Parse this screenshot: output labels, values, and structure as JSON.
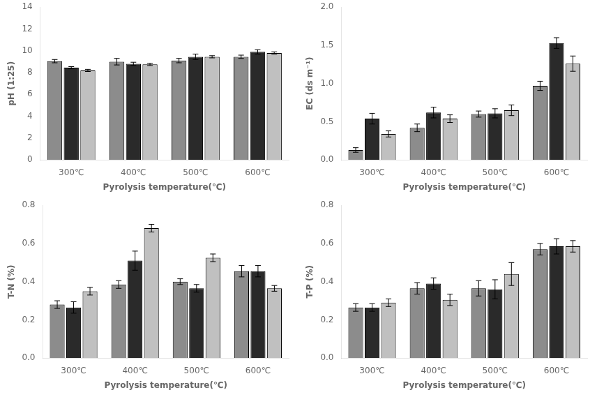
{
  "chart_data": [
    {
      "type": "bar",
      "categories": [
        "300℃",
        "400℃",
        "500℃",
        "600℃"
      ],
      "xlabel": "Pyrolysis temperature(℃)",
      "ylabel": "pH (1:25)",
      "ylim": [
        0,
        14
      ],
      "yticks": [
        0,
        2,
        4,
        6,
        8,
        10,
        12,
        14
      ],
      "grid": false,
      "series": [
        {
          "color": "#8c8c8c",
          "values": [
            9.05,
            9.0,
            9.1,
            9.45
          ],
          "errors": [
            0.15,
            0.3,
            0.2,
            0.15
          ]
        },
        {
          "color": "#2a2a2a",
          "values": [
            8.45,
            8.8,
            9.45,
            9.9
          ],
          "errors": [
            0.1,
            0.15,
            0.25,
            0.2
          ]
        },
        {
          "color": "#c0c0c0",
          "values": [
            8.2,
            8.75,
            9.45,
            9.8
          ],
          "errors": [
            0.1,
            0.1,
            0.1,
            0.1
          ]
        }
      ]
    },
    {
      "type": "bar",
      "categories": [
        "300℃",
        "400℃",
        "500℃",
        "600℃"
      ],
      "xlabel": "Pyrolysis temperature(℃)",
      "ylabel": "EC (ds m⁻¹)",
      "ylim": [
        0,
        2
      ],
      "yticks": [
        {
          "value": 0,
          "label": "0.0"
        },
        0.5,
        {
          "value": 1.0,
          "label": "1.0"
        },
        1.5,
        {
          "value": 2.0,
          "label": "2.0"
        }
      ],
      "grid": false,
      "series": [
        {
          "color": "#8c8c8c",
          "values": [
            0.13,
            0.42,
            0.6,
            0.97
          ],
          "errors": [
            0.03,
            0.05,
            0.04,
            0.06
          ]
        },
        {
          "color": "#2a2a2a",
          "values": [
            0.54,
            0.62,
            0.61,
            1.53
          ],
          "errors": [
            0.07,
            0.07,
            0.06,
            0.07
          ]
        },
        {
          "color": "#c0c0c0",
          "values": [
            0.34,
            0.54,
            0.65,
            1.26
          ],
          "errors": [
            0.04,
            0.05,
            0.07,
            0.1
          ]
        }
      ]
    },
    {
      "type": "bar",
      "categories": [
        "300℃",
        "400℃",
        "500℃",
        "600℃"
      ],
      "xlabel": "Pyrolysis temperature(℃)",
      "ylabel": "T-N (%)",
      "ylim": [
        0,
        0.8
      ],
      "yticks": [
        {
          "value": 0,
          "label": "0.0"
        },
        0.2,
        0.4,
        0.6,
        0.8
      ],
      "grid": false,
      "series": [
        {
          "color": "#8c8c8c",
          "values": [
            0.28,
            0.385,
            0.4,
            0.455
          ],
          "errors": [
            0.02,
            0.02,
            0.015,
            0.03
          ]
        },
        {
          "color": "#2a2a2a",
          "values": [
            0.265,
            0.51,
            0.365,
            0.455
          ],
          "errors": [
            0.03,
            0.05,
            0.02,
            0.03
          ]
        },
        {
          "color": "#c0c0c0",
          "values": [
            0.35,
            0.68,
            0.525,
            0.365
          ],
          "errors": [
            0.02,
            0.02,
            0.02,
            0.015
          ]
        }
      ]
    },
    {
      "type": "bar",
      "categories": [
        "300℃",
        "400℃",
        "500℃",
        "600℃"
      ],
      "xlabel": "Pyrolysis temperature(℃)",
      "ylabel": "T-P (%)",
      "ylim": [
        0,
        0.8
      ],
      "yticks": [
        {
          "value": 0,
          "label": "0.0"
        },
        0.2,
        0.4,
        0.6,
        0.8
      ],
      "grid": false,
      "series": [
        {
          "color": "#8c8c8c",
          "values": [
            0.265,
            0.365,
            0.365,
            0.57
          ],
          "errors": [
            0.02,
            0.03,
            0.04,
            0.03
          ]
        },
        {
          "color": "#2a2a2a",
          "values": [
            0.265,
            0.39,
            0.36,
            0.585
          ],
          "errors": [
            0.02,
            0.03,
            0.05,
            0.04
          ]
        },
        {
          "color": "#c0c0c0",
          "values": [
            0.29,
            0.305,
            0.44,
            0.585
          ],
          "errors": [
            0.02,
            0.03,
            0.06,
            0.03
          ]
        }
      ]
    }
  ]
}
